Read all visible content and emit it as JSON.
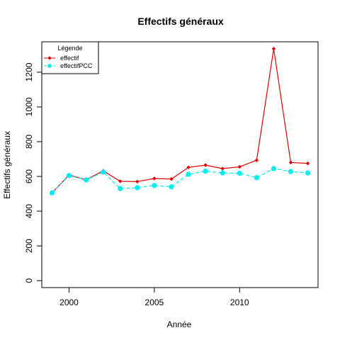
{
  "chart_data": {
    "type": "line",
    "title": "Effectifs généraux",
    "xlabel": "Année",
    "ylabel": "Effectifs généraux",
    "x": [
      1999,
      2000,
      2001,
      2002,
      2003,
      2004,
      2005,
      2006,
      2007,
      2008,
      2009,
      2010,
      2011,
      2012,
      2013,
      2014
    ],
    "xlim": [
      1998.4,
      2014.6
    ],
    "ylim": [
      -40,
      1375
    ],
    "x_ticks": [
      2000,
      2005,
      2010
    ],
    "y_ticks": [
      0,
      200,
      400,
      600,
      800,
      1000,
      1200
    ],
    "grid": false,
    "legend": {
      "title": "Légende",
      "position": "top-left"
    },
    "series": [
      {
        "name": "effectif",
        "color": "#dd0000",
        "line": "solid",
        "marker": "diamond",
        "values": [
          505,
          608,
          580,
          632,
          572,
          570,
          588,
          585,
          652,
          665,
          645,
          655,
          693,
          1335,
          680,
          675
        ]
      },
      {
        "name": "effectifPCC",
        "color": "#00eeee",
        "line": "dashed",
        "marker": "circle",
        "values": [
          505,
          605,
          580,
          625,
          530,
          535,
          548,
          540,
          612,
          630,
          620,
          618,
          593,
          645,
          628,
          620
        ]
      }
    ]
  }
}
